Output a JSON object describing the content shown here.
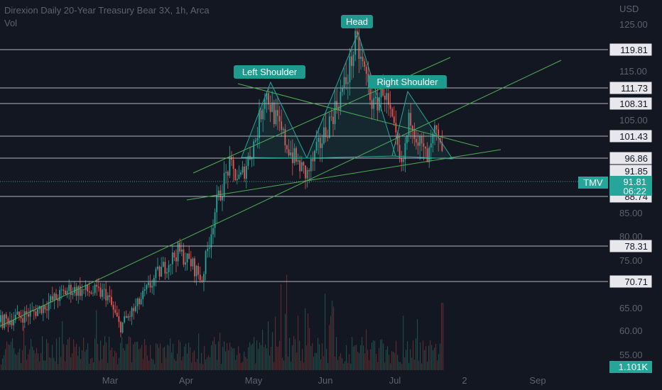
{
  "header": {
    "title": "Direxion Daily 20-Year Treasury Bear 3X, 1h, Arca",
    "volume_label": "Vol",
    "currency": "USD"
  },
  "colors": {
    "background": "#131722",
    "up": "#26a69a",
    "down": "#ef5350",
    "pattern": "#26a69a",
    "level_line": "#b2b5be",
    "axis_text": "#5d6270",
    "trend_line": "#4caf50"
  },
  "chart_data": {
    "type": "candlestick",
    "y_axis": {
      "ticks": [
        "125.00",
        "115.00",
        "105.00",
        "85.00",
        "80.00",
        "75.00",
        "65.00",
        "60.00",
        "55.00"
      ]
    },
    "x_axis": {
      "ticks": [
        "Mar",
        "Apr",
        "May",
        "Jun",
        "Jul",
        "2",
        "Sep"
      ]
    },
    "levels": [
      {
        "label": "119.81",
        "value": 119.81
      },
      {
        "label": "111.73",
        "value": 111.73
      },
      {
        "label": "108.31",
        "value": 108.31
      },
      {
        "label": "101.43",
        "value": 101.43
      },
      {
        "label": "96.86",
        "value": 96.86
      },
      {
        "label": "91.85",
        "value": 91.85
      },
      {
        "label": "88.74",
        "value": 88.74
      },
      {
        "label": "78.31",
        "value": 78.31
      },
      {
        "label": "70.71",
        "value": 70.71
      }
    ],
    "pattern_labels": [
      "Left Shoulder",
      "Head",
      "Right Shoulder"
    ],
    "symbol_badge": "TMV",
    "current_price": "91.81",
    "countdown": "06:22",
    "volume_readout": "1.101K",
    "price_path": [
      [
        "Feb 1",
        62
      ],
      [
        "Feb 10",
        64
      ],
      [
        "Feb 20",
        69
      ],
      [
        "Mar 1",
        68
      ],
      [
        "Mar 6",
        61
      ],
      [
        "Mar 12",
        65
      ],
      [
        "Mar 20",
        72
      ],
      [
        "Mar 28",
        77
      ],
      [
        "Apr 4",
        74
      ],
      [
        "Apr 8",
        71
      ],
      [
        "Apr 14",
        86
      ],
      [
        "Apr 20",
        95
      ],
      [
        "Apr 25",
        92
      ],
      [
        "May 2",
        101
      ],
      [
        "May 6",
        111
      ],
      [
        "May 12",
        103
      ],
      [
        "May 18",
        97
      ],
      [
        "May 24",
        93
      ],
      [
        "May 30",
        100
      ],
      [
        "Jun 5",
        107
      ],
      [
        "Jun 10",
        113
      ],
      [
        "Jun 14",
        121
      ],
      [
        "Jun 18",
        115
      ],
      [
        "Jun 22",
        107
      ],
      [
        "Jun 26",
        112
      ],
      [
        "Jul 1",
        101
      ],
      [
        "Jul 4",
        94
      ],
      [
        "Jul 8",
        106
      ],
      [
        "Jul 12",
        100
      ],
      [
        "Jul 16",
        96
      ],
      [
        "Jul 19",
        102
      ],
      [
        "Jul 22",
        98
      ],
      [
        "Jul 24",
        91.81
      ]
    ]
  }
}
